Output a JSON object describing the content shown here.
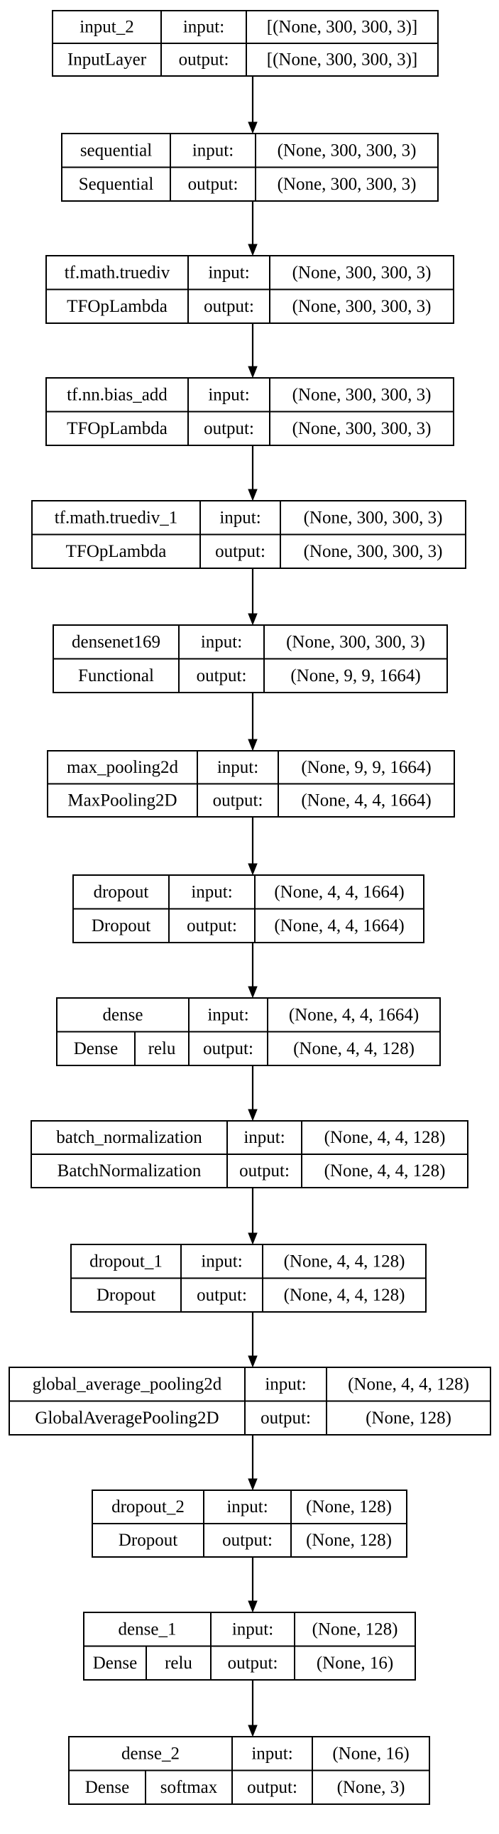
{
  "diagram": {
    "port_labels": {
      "input": "input:",
      "output": "output:"
    },
    "layers": [
      {
        "name": "input_2",
        "type": "InputLayer",
        "activation": "",
        "input_shape": "[(None, 300, 300, 3)]",
        "output_shape": "[(None, 300, 300, 3)]"
      },
      {
        "name": "sequential",
        "type": "Sequential",
        "activation": "",
        "input_shape": "(None, 300, 300, 3)",
        "output_shape": "(None, 300, 300, 3)"
      },
      {
        "name": "tf.math.truediv",
        "type": "TFOpLambda",
        "activation": "",
        "input_shape": "(None, 300, 300, 3)",
        "output_shape": "(None, 300, 300, 3)"
      },
      {
        "name": "tf.nn.bias_add",
        "type": "TFOpLambda",
        "activation": "",
        "input_shape": "(None, 300, 300, 3)",
        "output_shape": "(None, 300, 300, 3)"
      },
      {
        "name": "tf.math.truediv_1",
        "type": "TFOpLambda",
        "activation": "",
        "input_shape": "(None, 300, 300, 3)",
        "output_shape": "(None, 300, 300, 3)"
      },
      {
        "name": "densenet169",
        "type": "Functional",
        "activation": "",
        "input_shape": "(None, 300, 300, 3)",
        "output_shape": "(None, 9, 9, 1664)"
      },
      {
        "name": "max_pooling2d",
        "type": "MaxPooling2D",
        "activation": "",
        "input_shape": "(None, 9, 9, 1664)",
        "output_shape": "(None, 4, 4, 1664)"
      },
      {
        "name": "dropout",
        "type": "Dropout",
        "activation": "",
        "input_shape": "(None, 4, 4, 1664)",
        "output_shape": "(None, 4, 4, 1664)"
      },
      {
        "name": "dense",
        "type": "Dense",
        "activation": "relu",
        "input_shape": "(None, 4, 4, 1664)",
        "output_shape": "(None, 4, 4, 128)"
      },
      {
        "name": "batch_normalization",
        "type": "BatchNormalization",
        "activation": "",
        "input_shape": "(None, 4, 4, 128)",
        "output_shape": "(None, 4, 4, 128)"
      },
      {
        "name": "dropout_1",
        "type": "Dropout",
        "activation": "",
        "input_shape": "(None, 4, 4, 128)",
        "output_shape": "(None, 4, 4, 128)"
      },
      {
        "name": "global_average_pooling2d",
        "type": "GlobalAveragePooling2D",
        "activation": "",
        "input_shape": "(None, 4, 4, 128)",
        "output_shape": "(None, 128)"
      },
      {
        "name": "dropout_2",
        "type": "Dropout",
        "activation": "",
        "input_shape": "(None, 128)",
        "output_shape": "(None, 128)"
      },
      {
        "name": "dense_1",
        "type": "Dense",
        "activation": "relu",
        "input_shape": "(None, 128)",
        "output_shape": "(None, 16)"
      },
      {
        "name": "dense_2",
        "type": "Dense",
        "activation": "softmax",
        "input_shape": "(None, 16)",
        "output_shape": "(None, 3)"
      }
    ]
  }
}
